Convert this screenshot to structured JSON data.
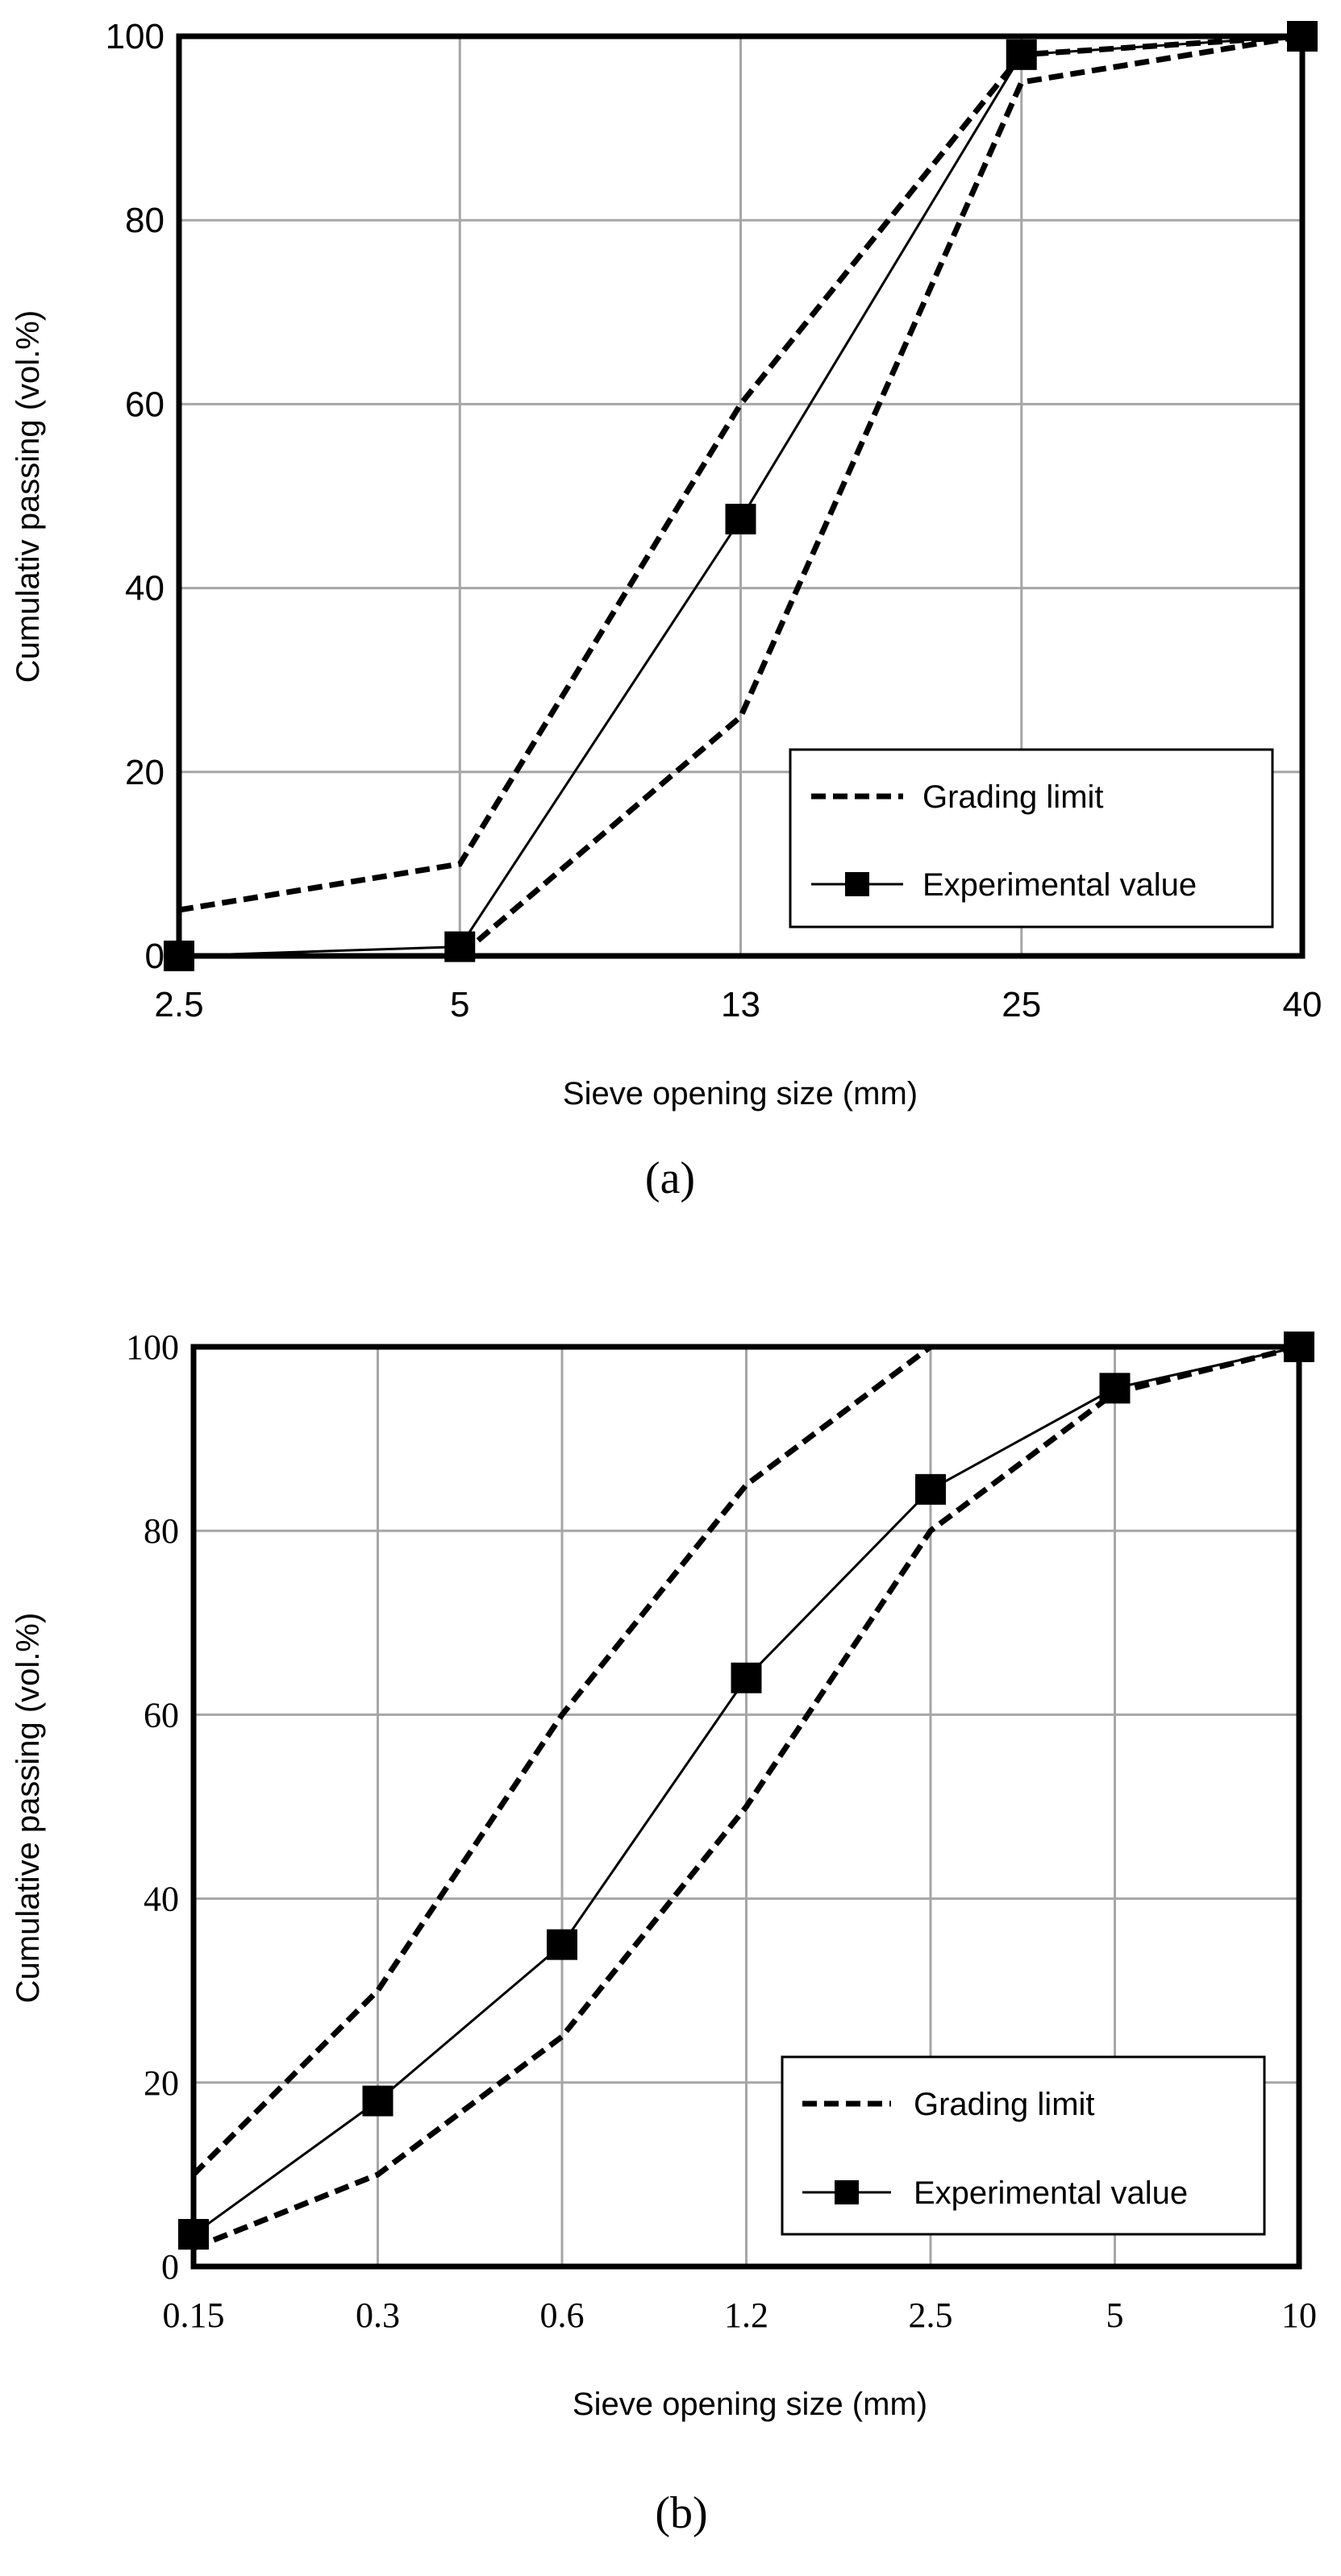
{
  "chart_data": [
    {
      "type": "line",
      "panel_label": "(a)",
      "xlabel": "Sieve opening size (mm)",
      "ylabel": "Cumulativ passing (vol.%)",
      "categories": [
        "2.5",
        "5",
        "13",
        "25",
        "40"
      ],
      "ylim": [
        0,
        100
      ],
      "yticks": [
        "0",
        "20",
        "40",
        "60",
        "80",
        "100"
      ],
      "grid": true,
      "legend_position": "bottom-right",
      "series": [
        {
          "name": "Grading limit",
          "style": "dashed",
          "values": [
            5,
            10,
            60,
            98,
            100
          ]
        },
        {
          "name": "",
          "style": "dashed",
          "values": [
            0,
            0,
            26,
            95,
            100
          ]
        },
        {
          "name": "Experimental value",
          "style": "solid-square",
          "values": [
            0,
            1,
            47.5,
            98,
            100
          ]
        }
      ]
    },
    {
      "type": "line",
      "panel_label": "(b)",
      "xlabel": "Sieve opening size (mm)",
      "ylabel": "Cumulative passing (vol.%)",
      "categories": [
        "0.15",
        "0.3",
        "0.6",
        "1.2",
        "2.5",
        "5",
        "10"
      ],
      "ylim": [
        0,
        100
      ],
      "yticks": [
        "0",
        "20",
        "40",
        "60",
        "80",
        "100"
      ],
      "grid": true,
      "legend_position": "bottom-right",
      "series": [
        {
          "name": "Grading limit",
          "style": "dashed",
          "values": [
            10,
            30,
            60,
            85,
            100,
            null,
            null
          ]
        },
        {
          "name": "",
          "style": "dashed",
          "values": [
            2,
            10,
            25,
            50,
            80,
            95,
            100
          ]
        },
        {
          "name": "Experimental value",
          "style": "solid-square",
          "values": [
            3.5,
            18,
            35,
            64,
            84.5,
            95.5,
            100
          ]
        }
      ]
    }
  ],
  "colors": {
    "line": "#000000",
    "grid": "#a6a6a6",
    "frame": "#000000"
  }
}
